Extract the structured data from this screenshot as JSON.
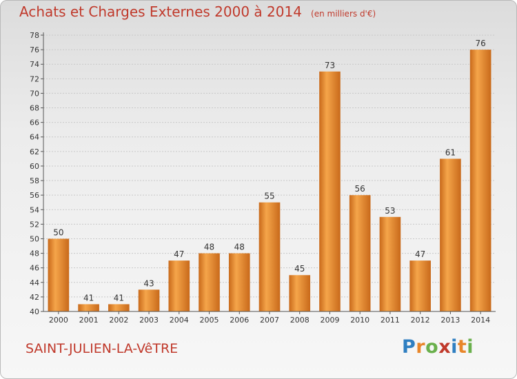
{
  "title": "Achats et Charges Externes 2000 à 2014",
  "unit_note": "(en milliers d'€)",
  "city": "SAINT-JULIEN-LA-VêTRE",
  "brand": {
    "letters": [
      "P",
      "r",
      "o",
      "x",
      "i",
      "t",
      "i"
    ],
    "colors": [
      "#2f7fc1",
      "#e8862a",
      "#6ab04c",
      "#c0392b",
      "#2f7fc1",
      "#e8862a",
      "#6ab04c"
    ]
  },
  "colors": {
    "title": "#c0392b",
    "bar_light": "#f5a54a",
    "bar_dark": "#c8691a",
    "grid": "#c8c8c8",
    "axis": "#555555"
  },
  "chart_data": {
    "type": "bar",
    "categories": [
      "2000",
      "2001",
      "2002",
      "2003",
      "2004",
      "2005",
      "2006",
      "2007",
      "2008",
      "2009",
      "2010",
      "2011",
      "2012",
      "2013",
      "2014"
    ],
    "values": [
      50,
      41,
      41,
      43,
      47,
      48,
      48,
      55,
      45,
      73,
      56,
      53,
      47,
      61,
      76
    ],
    "ylim": [
      40,
      78
    ],
    "yticks": [
      40,
      42,
      44,
      46,
      48,
      50,
      52,
      54,
      56,
      58,
      60,
      62,
      64,
      66,
      68,
      70,
      72,
      74,
      76,
      78
    ],
    "grid": true,
    "data_labels": true
  }
}
